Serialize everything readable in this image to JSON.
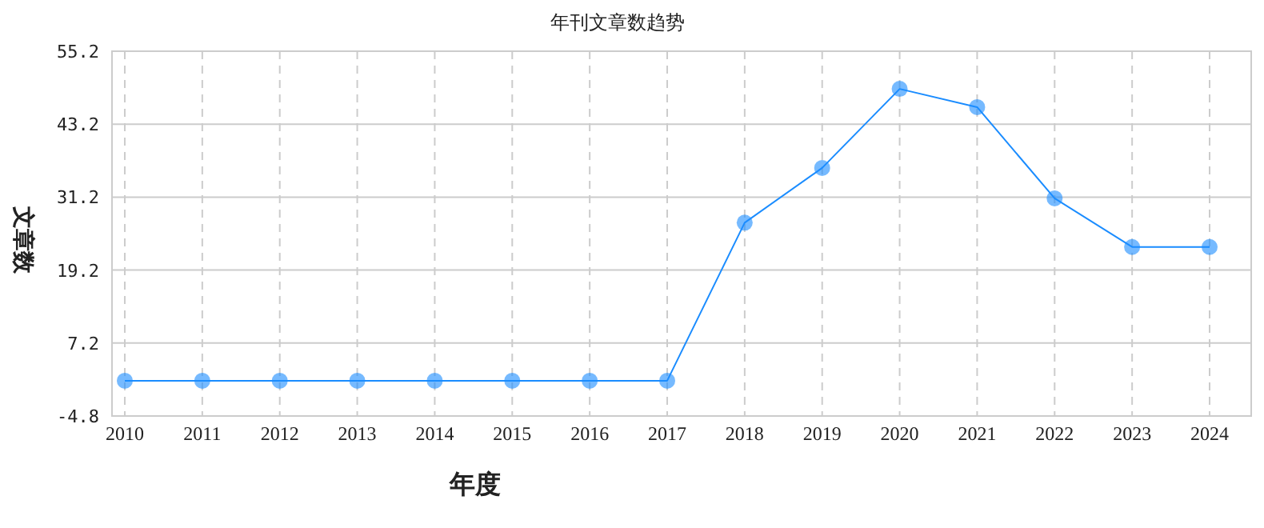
{
  "chart_data": {
    "type": "line",
    "title": "年刊文章数趋势",
    "xlabel": "年度",
    "ylabel": "文章数",
    "categories": [
      "2010",
      "2011",
      "2012",
      "2013",
      "2014",
      "2015",
      "2016",
      "2017",
      "2018",
      "2019",
      "2020",
      "2021",
      "2022",
      "2023",
      "2024"
    ],
    "values": [
      1,
      1,
      1,
      1,
      1,
      1,
      1,
      1,
      27,
      36,
      49,
      46,
      31,
      23,
      23
    ],
    "color": "#1a8cff",
    "ylim": [
      -4.8,
      55.2
    ],
    "yticks": [
      -4.8,
      7.2,
      19.2,
      31.2,
      43.2,
      55.2
    ],
    "grid": true,
    "marker": "circle",
    "line_style": "solid"
  }
}
